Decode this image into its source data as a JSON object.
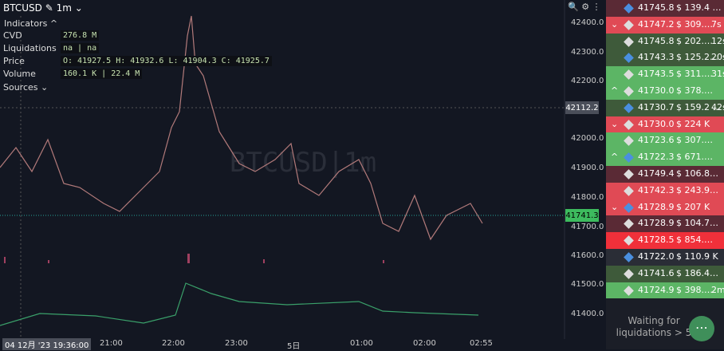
{
  "header": {
    "symbol": "BTCUSD",
    "interval": "1m"
  },
  "indicators": {
    "title": "Indicators",
    "sources": "Sources",
    "rows": [
      {
        "name": "CVD",
        "value": "276.8 M"
      },
      {
        "name": "Liquidations",
        "value": "na | na"
      },
      {
        "name": "Price",
        "value": "O: 41927.5 H: 41932.6 L: 41904.3 C: 41925.7"
      },
      {
        "name": "Volume",
        "value": "160.1 K | 22.4 M"
      }
    ]
  },
  "watermark": "BTCUSD|1m",
  "price_axis": [
    "42400.0",
    "42300.0",
    "42200.0",
    "42000.0",
    "41900.0",
    "41800.0",
    "41700.0",
    "41600.0",
    "41500.0",
    "41400.0"
  ],
  "price_tags": {
    "crosshair": "42112.2",
    "last": "41741.3"
  },
  "time_axis": {
    "cursor": "04 12月 '23  19:36:00",
    "labels": [
      "21:00",
      "22:00",
      "23:00",
      "5日",
      "01:00",
      "02:00",
      "02:55"
    ]
  },
  "trades": [
    {
      "price": "41745.8",
      "amount": "$ 139.4 …",
      "time": ""
    },
    {
      "price": "41747.2",
      "amount": "$ 309.…",
      "time": "7s"
    },
    {
      "price": "41745.8",
      "amount": "$ 202.…",
      "time": "12s"
    },
    {
      "price": "41743.3",
      "amount": "$ 125.2…",
      "time": "20s"
    },
    {
      "price": "41743.5",
      "amount": "$ 311.…",
      "time": "31s"
    },
    {
      "price": "41730.0",
      "amount": "$ 378.…",
      "time": ""
    },
    {
      "price": "41730.7",
      "amount": "$ 159.2 …",
      "time": "42s"
    },
    {
      "price": "41730.0",
      "amount": "$ 224 K",
      "time": ""
    },
    {
      "price": "41723.6",
      "amount": "$ 307.…",
      "time": ""
    },
    {
      "price": "41722.3",
      "amount": "$ 671.…",
      "time": ""
    },
    {
      "price": "41749.4",
      "amount": "$ 106.8…",
      "time": ""
    },
    {
      "price": "41742.3",
      "amount": "$ 243.9…",
      "time": ""
    },
    {
      "price": "41728.9",
      "amount": "$ 207 K",
      "time": ""
    },
    {
      "price": "41728.9",
      "amount": "$ 104.7…",
      "time": ""
    },
    {
      "price": "41728.5",
      "amount": "$ 854.…",
      "time": ""
    },
    {
      "price": "41722.0",
      "amount": "$ 110.9 K",
      "time": ""
    },
    {
      "price": "41741.6",
      "amount": "$ 186.4…",
      "time": ""
    },
    {
      "price": "41724.9",
      "amount": "$ 398.…",
      "time": "2m"
    }
  ],
  "waiting": [
    "Waiting for",
    "liquidations > 5"
  ]
}
